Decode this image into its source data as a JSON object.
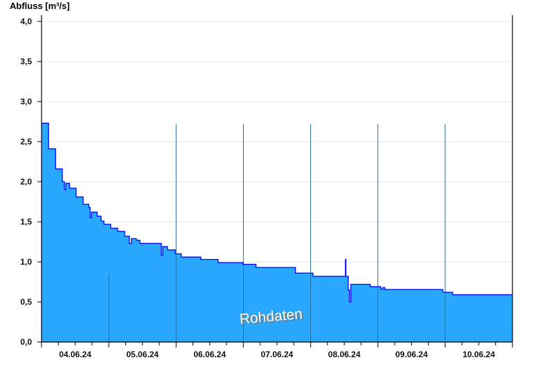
{
  "chart_data": {
    "type": "area",
    "ylabel": "Abfluss [m³/s]",
    "ylim": [
      0,
      4.0
    ],
    "yticks": [
      "0,0",
      "0,5",
      "1,0",
      "1,5",
      "2,0",
      "2,5",
      "3,0",
      "3,5",
      "4,0"
    ],
    "xlim": [
      "04.06.24 00:00",
      "11.06.24 00:00"
    ],
    "xticks": [
      "04.06.24",
      "05.06.24",
      "06.06.24",
      "07.06.24",
      "08.06.24",
      "09.06.24",
      "10.06.24"
    ],
    "grid": true,
    "step": true,
    "watermark": "Rohdaten",
    "colors": {
      "fill": "#2aa8ff",
      "line": "#0000ff",
      "day_separator": "#1f6e9e",
      "grid": "#e6e6e6"
    },
    "points": [
      [
        "04.06.24 00:00",
        2.73
      ],
      [
        "04.06.24 02:30",
        2.41
      ],
      [
        "04.06.24 05:00",
        2.16
      ],
      [
        "04.06.24 07:24",
        2.0
      ],
      [
        "04.06.24 08:10",
        1.9
      ],
      [
        "04.06.24 08:40",
        1.98
      ],
      [
        "04.06.24 10:00",
        1.92
      ],
      [
        "04.06.24 12:20",
        1.81
      ],
      [
        "04.06.24 14:50",
        1.72
      ],
      [
        "04.06.24 16:50",
        1.68
      ],
      [
        "04.06.24 17:20",
        1.55
      ],
      [
        "04.06.24 17:50",
        1.62
      ],
      [
        "04.06.24 19:50",
        1.57
      ],
      [
        "04.06.24 21:15",
        1.51
      ],
      [
        "04.06.24 22:15",
        1.47
      ],
      [
        "05.06.24 00:40",
        1.42
      ],
      [
        "05.06.24 03:10",
        1.38
      ],
      [
        "05.06.24 05:40",
        1.32
      ],
      [
        "05.06.24 07:20",
        1.23
      ],
      [
        "05.06.24 08:05",
        1.29
      ],
      [
        "05.06.24 09:50",
        1.27
      ],
      [
        "05.06.24 11:05",
        1.23
      ],
      [
        "05.06.24 18:30",
        1.23
      ],
      [
        "05.06.24 18:45",
        1.08
      ],
      [
        "05.06.24 19:15",
        1.19
      ],
      [
        "05.06.24 20:55",
        1.15
      ],
      [
        "05.06.24 23:40",
        1.1
      ],
      [
        "06.06.24 01:50",
        1.06
      ],
      [
        "06.06.24 08:50",
        1.03
      ],
      [
        "06.06.24 15:00",
        0.99
      ],
      [
        "06.06.24 23:50",
        0.97
      ],
      [
        "07.06.24 04:30",
        0.93
      ],
      [
        "07.06.24 18:35",
        0.86
      ],
      [
        "08.06.24 00:50",
        0.82
      ],
      [
        "08.06.24 12:25",
        1.03
      ],
      [
        "08.06.24 12:35",
        0.82
      ],
      [
        "08.06.24 13:25",
        0.65
      ],
      [
        "08.06.24 13:50",
        0.5
      ],
      [
        "08.06.24 14:20",
        0.72
      ],
      [
        "08.06.24 21:15",
        0.69
      ],
      [
        "09.06.24 01:00",
        0.66
      ],
      [
        "09.06.24 01:45",
        0.68
      ],
      [
        "09.06.24 02:30",
        0.655
      ],
      [
        "09.06.24 23:10",
        0.62
      ],
      [
        "10.06.24 02:40",
        0.59
      ],
      [
        "10.06.24 23:59",
        0.59
      ]
    ]
  }
}
